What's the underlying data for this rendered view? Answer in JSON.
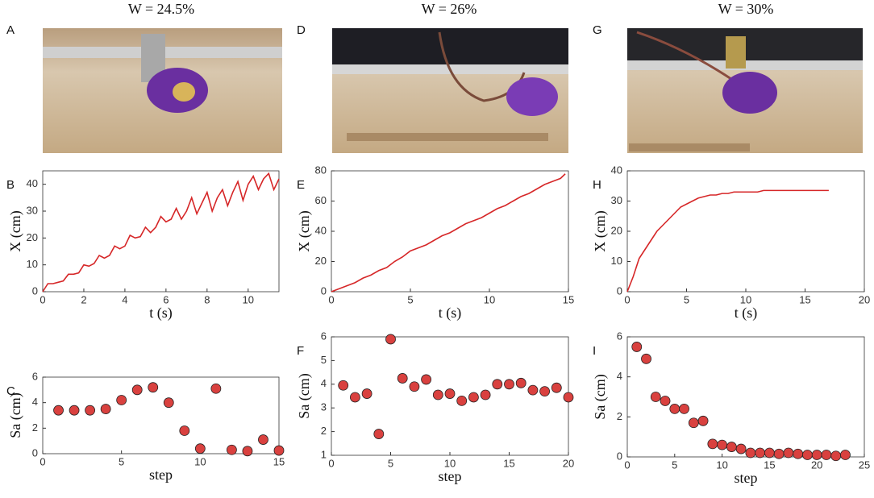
{
  "column_titles": [
    "W = 24.5%",
    "W = 26%",
    "W = 30%"
  ],
  "photo_labels": [
    "A",
    "D",
    "G"
  ],
  "chart_data": [
    {
      "type": "line",
      "panel": "B",
      "xlabel": "t (s)",
      "ylabel": "X (cm)",
      "color": "#d62728",
      "x": [
        0,
        0.25,
        0.5,
        0.75,
        1,
        1.25,
        1.5,
        1.75,
        2,
        2.25,
        2.5,
        2.75,
        3,
        3.25,
        3.5,
        3.75,
        4,
        4.25,
        4.5,
        4.75,
        5,
        5.25,
        5.5,
        5.75,
        6,
        6.25,
        6.5,
        6.75,
        7,
        7.25,
        7.5,
        7.75,
        8,
        8.25,
        8.5,
        8.75,
        9,
        9.25,
        9.5,
        9.75,
        10,
        10.25,
        10.5,
        10.75,
        11,
        11.25,
        11.5
      ],
      "values": [
        0,
        3,
        3,
        3.5,
        4,
        6.5,
        6.5,
        7,
        10,
        9.5,
        10.5,
        13.5,
        12.5,
        13.5,
        17,
        16,
        17,
        21,
        20,
        20.5,
        24,
        22,
        24,
        28,
        26,
        27,
        31,
        27,
        30,
        35,
        29,
        33,
        37,
        30,
        35,
        38,
        32,
        37,
        41,
        34,
        40,
        43,
        38,
        42,
        44,
        38,
        42
      ],
      "xlim": [
        0,
        11.5
      ],
      "ylim": [
        0,
        45
      ],
      "xticks": [
        0,
        2,
        4,
        6,
        8,
        10
      ],
      "yticks": [
        0,
        10,
        20,
        30,
        40
      ]
    },
    {
      "type": "scatter",
      "panel": "C",
      "xlabel": "step",
      "ylabel": "Sa (cm)",
      "color": "#d9413f",
      "x": [
        1,
        2,
        3,
        4,
        5,
        6,
        7,
        8,
        9,
        10,
        11,
        12,
        13,
        14,
        15
      ],
      "values": [
        3.4,
        3.4,
        3.4,
        3.5,
        4.2,
        5,
        5.2,
        4,
        1.8,
        0.4,
        5.1,
        0.3,
        0.2,
        1.1,
        0.25
      ],
      "xlim": [
        0,
        15
      ],
      "ylim": [
        0,
        6
      ],
      "xticks": [
        0,
        5,
        10,
        15
      ],
      "yticks": [
        0,
        2,
        4,
        6
      ]
    },
    {
      "type": "line",
      "panel": "E",
      "xlabel": "t (s)",
      "ylabel": "X (cm)",
      "color": "#d62728",
      "x": [
        0,
        0.5,
        1,
        1.5,
        2,
        2.5,
        3,
        3.5,
        4,
        4.5,
        5,
        5.5,
        6,
        6.5,
        7,
        7.5,
        8,
        8.5,
        9,
        9.5,
        10,
        10.5,
        11,
        11.5,
        12,
        12.5,
        13,
        13.5,
        14,
        14.5,
        14.8
      ],
      "values": [
        0,
        2,
        4,
        6,
        9,
        11,
        14,
        16,
        20,
        23,
        27,
        29,
        31,
        34,
        37,
        39,
        42,
        45,
        47,
        49,
        52,
        55,
        57,
        60,
        63,
        65,
        68,
        71,
        73,
        75,
        78
      ],
      "xlim": [
        0,
        15
      ],
      "ylim": [
        0,
        80
      ],
      "xticks": [
        0,
        5,
        10,
        15
      ],
      "yticks": [
        0,
        20,
        40,
        60,
        80
      ]
    },
    {
      "type": "scatter",
      "panel": "F",
      "xlabel": "step",
      "ylabel": "Sa (cm)",
      "color": "#d9413f",
      "x": [
        1,
        2,
        3,
        4,
        5,
        6,
        7,
        8,
        9,
        10,
        11,
        12,
        13,
        14,
        15,
        16,
        17,
        18,
        19,
        20
      ],
      "values": [
        3.95,
        3.45,
        3.6,
        1.9,
        5.9,
        4.25,
        3.9,
        4.2,
        3.55,
        3.6,
        3.3,
        3.45,
        3.55,
        4,
        4,
        4.05,
        3.75,
        3.7,
        3.85,
        3.45
      ],
      "xlim": [
        0,
        20
      ],
      "ylim": [
        1,
        6
      ],
      "xticks": [
        0,
        5,
        10,
        15,
        20
      ],
      "yticks": [
        1,
        2,
        3,
        4,
        5,
        6
      ]
    },
    {
      "type": "line",
      "panel": "H",
      "xlabel": "t (s)",
      "ylabel": "X (cm)",
      "color": "#d62728",
      "x": [
        0,
        0.5,
        1,
        1.5,
        2,
        2.5,
        3,
        3.5,
        4,
        4.5,
        5,
        5.5,
        6,
        6.5,
        7,
        7.5,
        8,
        8.5,
        9,
        9.5,
        10,
        10.5,
        11,
        11.5,
        12,
        12.5,
        13,
        13.5,
        14,
        14.5,
        15,
        15.5,
        16,
        16.5,
        17
      ],
      "values": [
        0,
        5,
        11,
        14,
        17,
        20,
        22,
        24,
        26,
        28,
        29,
        30,
        31,
        31.5,
        32,
        32,
        32.5,
        32.5,
        33,
        33,
        33,
        33,
        33,
        33.5,
        33.5,
        33.5,
        33.5,
        33.5,
        33.5,
        33.5,
        33.5,
        33.5,
        33.5,
        33.5,
        33.5
      ],
      "xlim": [
        0,
        20
      ],
      "ylim": [
        0,
        40
      ],
      "xticks": [
        0,
        5,
        10,
        15,
        20
      ],
      "yticks": [
        0,
        10,
        20,
        30,
        40
      ]
    },
    {
      "type": "scatter",
      "panel": "I",
      "xlabel": "step",
      "ylabel": "Sa (cm)",
      "color": "#d9413f",
      "x": [
        1,
        2,
        3,
        4,
        5,
        6,
        7,
        8,
        9,
        10,
        11,
        12,
        13,
        14,
        15,
        16,
        17,
        18,
        19,
        20,
        21,
        22,
        23
      ],
      "values": [
        5.5,
        4.9,
        3,
        2.8,
        2.4,
        2.4,
        1.7,
        1.8,
        0.65,
        0.6,
        0.5,
        0.4,
        0.2,
        0.2,
        0.2,
        0.15,
        0.2,
        0.15,
        0.1,
        0.1,
        0.1,
        0.05,
        0.1
      ],
      "xlim": [
        0,
        25
      ],
      "ylim": [
        0,
        6
      ],
      "xticks": [
        0,
        5,
        10,
        15,
        20,
        25
      ],
      "yticks": [
        0,
        2,
        4,
        6
      ]
    }
  ]
}
